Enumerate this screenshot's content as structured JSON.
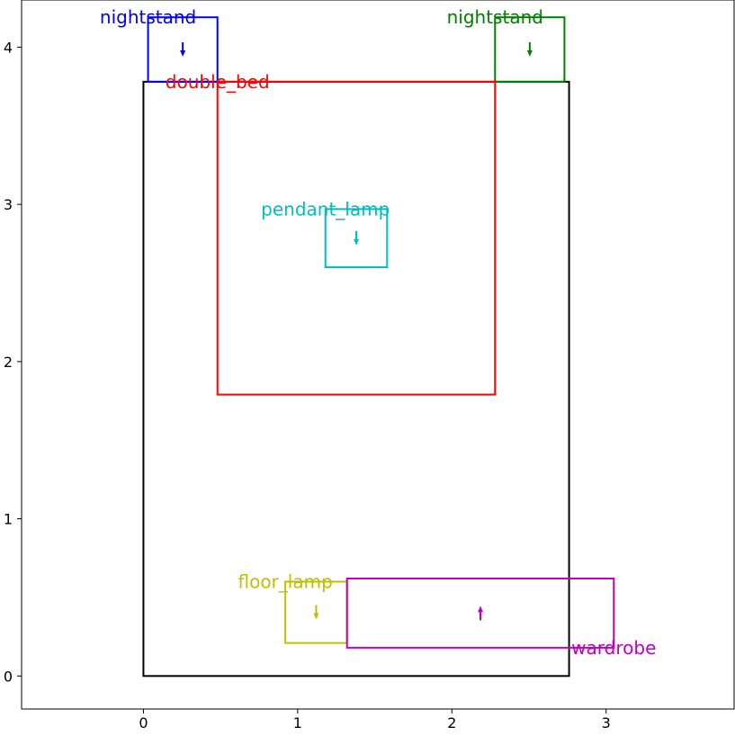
{
  "chart_data": {
    "type": "scatter",
    "title": "",
    "xlabel": "",
    "ylabel": "",
    "xlim": [
      -0.79,
      3.83
    ],
    "ylim": [
      -0.21,
      4.3
    ],
    "xticks": [
      0,
      1,
      2,
      3
    ],
    "yticks": [
      0,
      1,
      2,
      3,
      4
    ],
    "grid": false,
    "legend": "none",
    "room": {
      "name": "room-boundary",
      "color": "#000000",
      "x0": 0.0,
      "y0": 0.0,
      "x1": 2.76,
      "y1": 3.78
    },
    "objects": [
      {
        "label": "nightstand",
        "color": "#0000ff",
        "x0": 0.03,
        "y0": 3.78,
        "x1": 0.48,
        "y1": 4.19,
        "arrow": "down",
        "label_anchor": "top-left"
      },
      {
        "label": "nightstand",
        "color": "#008000",
        "x0": 2.28,
        "y0": 3.78,
        "x1": 2.73,
        "y1": 4.19,
        "arrow": "down",
        "label_anchor": "top-left"
      },
      {
        "label": "double_bed",
        "color": "#ff0000",
        "x0": 0.48,
        "y0": 1.79,
        "x1": 2.28,
        "y1": 3.78,
        "arrow": "none",
        "label_anchor": "top-left"
      },
      {
        "label": "pendant_lamp",
        "color": "#00bfbf",
        "x0": 1.18,
        "y0": 2.6,
        "x1": 1.58,
        "y1": 2.97,
        "arrow": "down",
        "label_anchor": "top-left"
      },
      {
        "label": "floor_lamp",
        "color": "#bfbf00",
        "x0": 0.92,
        "y0": 0.21,
        "x1": 1.32,
        "y1": 0.6,
        "arrow": "down",
        "label_anchor": "top-left"
      },
      {
        "label": "wardrobe",
        "color": "#bf00bf",
        "x0": 1.32,
        "y0": 0.18,
        "x1": 3.05,
        "y1": 0.62,
        "arrow": "up",
        "label_anchor": "bottom-right"
      }
    ]
  }
}
